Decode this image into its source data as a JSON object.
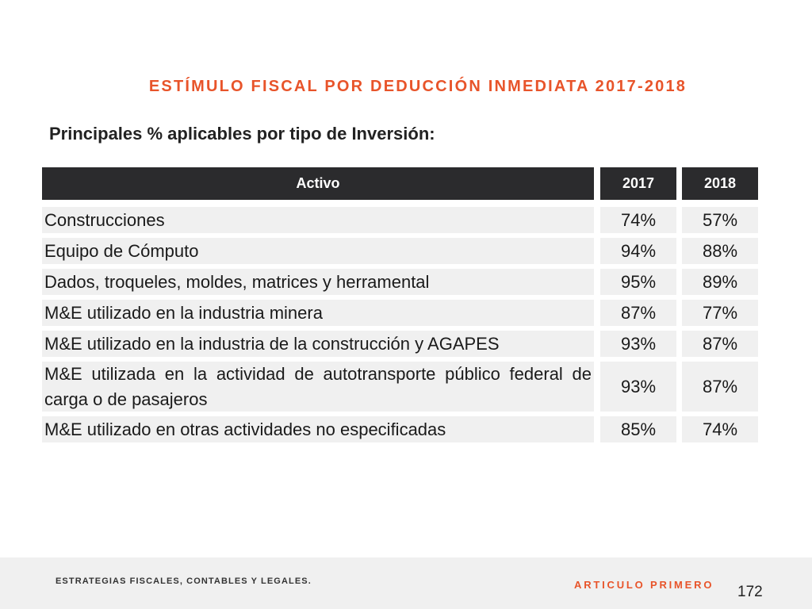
{
  "slide": {
    "title": "ESTÍMULO FISCAL POR DEDUCCIÓN INMEDIATA 2017-2018",
    "subtitle": "Principales % aplicables por tipo de Inversión:"
  },
  "table": {
    "headers": [
      "Activo",
      "2017",
      "2018"
    ],
    "rows": [
      {
        "activo": "Construcciones",
        "y2017": "74%",
        "y2018": "57%"
      },
      {
        "activo": "Equipo de Cómputo",
        "y2017": "94%",
        "y2018": "88%"
      },
      {
        "activo": "Dados, troqueles, moldes, matrices y herramental",
        "y2017": "95%",
        "y2018": "89%"
      },
      {
        "activo": "M&E utilizado en la industria minera",
        "y2017": "87%",
        "y2018": "77%"
      },
      {
        "activo": "M&E utilizado en la industria de la construcción y AGAPES",
        "y2017": "93%",
        "y2018": "87%"
      },
      {
        "activo": "M&E utilizada en la actividad de autotransporte público federal de carga o de pasajeros",
        "y2017": "93%",
        "y2018": "87%"
      },
      {
        "activo": "M&E utilizado en otras actividades no especificadas",
        "y2017": "85%",
        "y2018": "74%"
      }
    ]
  },
  "footer": {
    "left_text": "ESTRATEGIAS FISCALES, CONTABLES Y LEGALES.",
    "right_text": "ARTICULO PRIMERO",
    "page_number": "172"
  },
  "colors": {
    "accent": "#e8542a",
    "header_bg": "#2b2b2d",
    "cell_bg": "#f0f0f0"
  }
}
